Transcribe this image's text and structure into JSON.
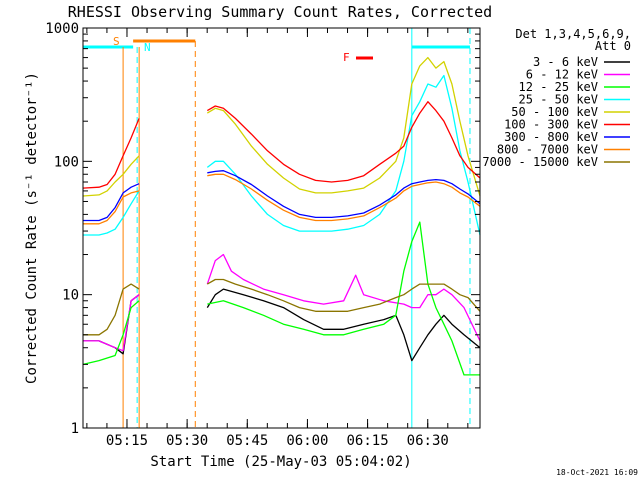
{
  "chart_data": {
    "type": "line",
    "title": "RHESSI Observing Summary Count Rates, Corrected",
    "xlabel": "Start Time (25-May-03 05:04:02)",
    "ylabel": "Corrected Count Rate (s⁻¹ detector⁻¹)",
    "y_scale": "log",
    "ylim": [
      1,
      1000
    ],
    "xlim_minutes_after_start": [
      0,
      99
    ],
    "x_tick_labels": [
      "05:15",
      "05:30",
      "05:45",
      "06:00",
      "06:15",
      "06:30"
    ],
    "y_tick_labels": [
      "1",
      "10",
      "100",
      "1000"
    ],
    "grid": false,
    "legend_position": "right",
    "legend_header": [
      "Det 1,3,4,5,6,9,",
      "Att 0"
    ],
    "footer_date": "18-Oct-2021 16:09",
    "data_gaps_minutes": [
      [
        14,
        31
      ]
    ],
    "series": [
      {
        "name": "3 - 6 keV",
        "color": "#000000",
        "x": [
          0,
          4,
          8,
          10,
          12,
          14,
          31,
          33,
          35,
          40,
          45,
          50,
          55,
          60,
          65,
          70,
          75,
          78,
          80,
          82,
          84,
          86,
          88,
          90,
          92,
          95,
          99
        ],
        "y": [
          4.5,
          4.5,
          4,
          3.6,
          9,
          10,
          8,
          10,
          11,
          10,
          9,
          8,
          6.5,
          5.5,
          5.5,
          6,
          6.5,
          7,
          5,
          3.2,
          4,
          5,
          6,
          7,
          6,
          5,
          4
        ]
      },
      {
        "name": "6 - 12 keV",
        "color": "#ff00ff",
        "x": [
          0,
          4,
          8,
          10,
          12,
          14,
          31,
          33,
          35,
          37,
          40,
          45,
          50,
          55,
          60,
          65,
          68,
          70,
          75,
          80,
          82,
          84,
          86,
          88,
          90,
          92,
          95,
          99
        ],
        "y": [
          4.5,
          4.5,
          4,
          3.8,
          9,
          10,
          12,
          18,
          20,
          15,
          13,
          11,
          10,
          9,
          8.5,
          9,
          14,
          10,
          9,
          8.5,
          8,
          8,
          10,
          10,
          11,
          10,
          8,
          4.5
        ]
      },
      {
        "name": "12 - 25 keV",
        "color": "#00ff00",
        "x": [
          0,
          4,
          8,
          10,
          12,
          14,
          31,
          35,
          40,
          45,
          50,
          55,
          60,
          65,
          70,
          75,
          78,
          80,
          82,
          84,
          86,
          88,
          90,
          92,
          95,
          99
        ],
        "y": [
          3,
          3.2,
          3.5,
          5,
          8,
          9,
          8.5,
          9,
          8,
          7,
          6,
          5.5,
          5,
          5,
          5.5,
          6,
          7,
          15,
          25,
          35,
          12,
          8,
          6,
          4.5,
          2.5,
          2.5
        ]
      },
      {
        "name": "25 - 50 keV",
        "color": "#00ffff",
        "x": [
          0,
          4,
          6,
          8,
          10,
          12,
          14,
          31,
          33,
          35,
          38,
          42,
          46,
          50,
          54,
          58,
          62,
          66,
          70,
          74,
          78,
          80,
          82,
          84,
          86,
          88,
          90,
          92,
          94,
          96,
          99
        ],
        "y": [
          28,
          28,
          29,
          31,
          38,
          48,
          60,
          90,
          100,
          100,
          80,
          55,
          40,
          33,
          30,
          30,
          30,
          31,
          33,
          40,
          60,
          100,
          220,
          280,
          380,
          360,
          440,
          250,
          120,
          70,
          28
        ]
      },
      {
        "name": "50 - 100 keV",
        "color": "#d2d200",
        "x": [
          0,
          4,
          6,
          8,
          10,
          12,
          14,
          31,
          33,
          35,
          38,
          42,
          46,
          50,
          54,
          58,
          62,
          66,
          70,
          74,
          78,
          80,
          82,
          84,
          86,
          88,
          90,
          92,
          94,
          96,
          99
        ],
        "y": [
          55,
          56,
          60,
          70,
          80,
          95,
          110,
          230,
          250,
          240,
          190,
          130,
          95,
          75,
          62,
          58,
          58,
          60,
          63,
          75,
          100,
          150,
          380,
          520,
          600,
          500,
          560,
          380,
          200,
          110,
          55
        ]
      },
      {
        "name": "100 - 300 keV",
        "color": "#ff0000",
        "x": [
          0,
          4,
          6,
          8,
          10,
          12,
          14,
          31,
          33,
          35,
          38,
          42,
          46,
          50,
          54,
          58,
          62,
          66,
          70,
          74,
          78,
          80,
          82,
          84,
          86,
          88,
          90,
          92,
          94,
          96,
          99
        ],
        "y": [
          63,
          64,
          67,
          80,
          110,
          150,
          210,
          240,
          260,
          250,
          210,
          160,
          120,
          95,
          80,
          72,
          70,
          72,
          78,
          95,
          115,
          130,
          180,
          230,
          280,
          240,
          200,
          150,
          110,
          90,
          75
        ]
      },
      {
        "name": "300 - 800 keV",
        "color": "#0000ff",
        "x": [
          0,
          4,
          6,
          8,
          10,
          12,
          14,
          31,
          33,
          35,
          38,
          42,
          46,
          50,
          54,
          58,
          62,
          66,
          70,
          74,
          78,
          80,
          82,
          84,
          86,
          88,
          90,
          92,
          94,
          96,
          99
        ],
        "y": [
          36,
          36,
          38,
          45,
          58,
          64,
          68,
          82,
          84,
          85,
          78,
          67,
          55,
          46,
          40,
          38,
          38,
          39,
          41,
          47,
          56,
          63,
          68,
          70,
          72,
          73,
          72,
          68,
          62,
          57,
          48
        ]
      },
      {
        "name": "800 - 7000 keV",
        "color": "#ff8000",
        "x": [
          0,
          4,
          6,
          8,
          10,
          12,
          14,
          31,
          33,
          35,
          38,
          42,
          46,
          50,
          54,
          58,
          62,
          66,
          70,
          74,
          78,
          80,
          82,
          84,
          86,
          88,
          90,
          92,
          94,
          96,
          99
        ],
        "y": [
          34,
          34,
          36,
          42,
          54,
          58,
          60,
          78,
          80,
          80,
          73,
          62,
          51,
          43,
          38,
          36,
          36,
          37,
          39,
          45,
          53,
          60,
          65,
          67,
          69,
          70,
          68,
          64,
          58,
          54,
          46
        ]
      },
      {
        "name": "7000 - 15000 keV",
        "color": "#8b7500",
        "x": [
          0,
          4,
          6,
          8,
          10,
          12,
          14,
          31,
          33,
          35,
          38,
          42,
          46,
          50,
          54,
          58,
          62,
          66,
          70,
          74,
          78,
          80,
          82,
          84,
          86,
          88,
          90,
          92,
          94,
          96,
          99
        ],
        "y": [
          5,
          5,
          5.5,
          7,
          11,
          12,
          11,
          12,
          13,
          13,
          12,
          11,
          10,
          9,
          8,
          7.5,
          7.5,
          7.5,
          8,
          8.5,
          9.5,
          10,
          11,
          12,
          12,
          12,
          12,
          11,
          10,
          9.5,
          7.5
        ]
      }
    ],
    "annotations": [
      {
        "label": "S",
        "color": "#ff8000"
      },
      {
        "label": "N",
        "color": "#00ffff"
      },
      {
        "label": "F",
        "color": "#ff0000"
      }
    ]
  }
}
